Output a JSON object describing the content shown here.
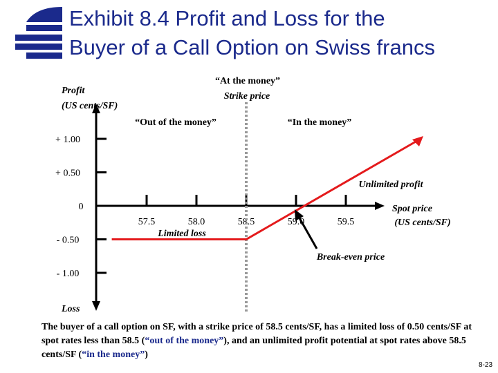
{
  "title": {
    "line1": "Exhibit 8.4  Profit and Loss for the",
    "line2": "Buyer of a Call Option on Swiss francs"
  },
  "colors": {
    "title": "#1b2a8c",
    "payoff_line": "#e41a1c",
    "strike_line": "#999999",
    "axis": "#000000"
  },
  "chart_data": {
    "type": "line",
    "ylabel_line1": "Profit",
    "ylabel_line2": "(US cents/SF)",
    "ylabel_bottom": "Loss",
    "xlabel_line1": "Spot price",
    "xlabel_line2": "(US cents/SF)",
    "y_ticks": [
      1.0,
      0.5,
      0.0,
      -0.5,
      -1.0
    ],
    "y_tick_labels": [
      "+ 1.00",
      "+ 0.50",
      "0",
      "- 0.50",
      "- 1.00"
    ],
    "x_ticks": [
      57.5,
      58.0,
      58.5,
      59.0,
      59.5
    ],
    "x_tick_labels": [
      "57.5",
      "58.0",
      "58.5",
      "59.0",
      "59.5"
    ],
    "xlim": [
      56.9,
      60.3
    ],
    "ylim": [
      -1.35,
      1.0
    ],
    "strike": 58.5,
    "series": [
      {
        "x": [
          57.15,
          58.5,
          60.25
        ],
        "y": [
          -0.5,
          -0.5,
          1.0
        ]
      }
    ],
    "annotations": {
      "atm_line1": "“At the money”",
      "atm_line2": "Strike price",
      "otm": "“Out of the money”",
      "itm": "“In the money”",
      "unlimited": "Unlimited profit",
      "limited": "Limited loss",
      "breakeven": "Break-even price"
    }
  },
  "caption": {
    "p1": "The buyer of a call option on SF, with a strike price of 58.5 cents/SF, has a limited loss of 0.50 cents/SF at spot rates less than 58.5 (",
    "otm": "“out of the money”",
    "p2": "), and an unlimited profit potential at spot rates above 58.5 cents/SF (",
    "itm": "“in the money”",
    "p3": ")"
  },
  "page_number": "8-23"
}
